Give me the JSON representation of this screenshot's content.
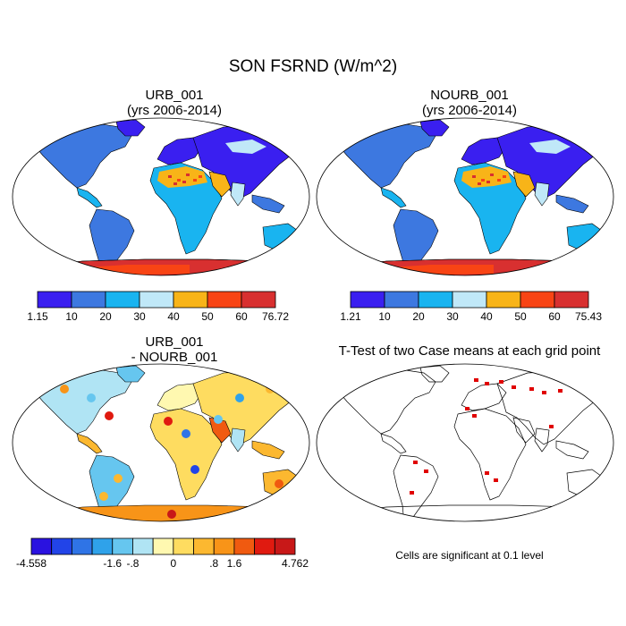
{
  "figure": {
    "title": "SON FSRND (W/m^2)",
    "significance_note": "Cells are significant at 0.1 level"
  },
  "panels": [
    {
      "id": "urb",
      "title_line1": "URB_001",
      "title_line2": "(yrs 2006-2014)",
      "colorbar": {
        "colors": [
          "#3a1ff0",
          "#3d78e0",
          "#19b4f0",
          "#c0e8f8",
          "#f8b418",
          "#f84414",
          "#d83030"
        ],
        "labels": [
          "1.15",
          "10",
          "20",
          "30",
          "40",
          "50",
          "60",
          "76.72"
        ]
      }
    },
    {
      "id": "nourb",
      "title_line1": "NOURB_001",
      "title_line2": "(yrs 2006-2014)",
      "colorbar": {
        "colors": [
          "#3a1ff0",
          "#3d78e0",
          "#19b4f0",
          "#c0e8f8",
          "#f8b418",
          "#f84414",
          "#d83030"
        ],
        "labels": [
          "1.21",
          "10",
          "20",
          "30",
          "40",
          "50",
          "60",
          "75.43"
        ]
      }
    },
    {
      "id": "diff",
      "title_line1": "URB_001",
      "title_line2": "- NOURB_001",
      "colorbar": {
        "colors": [
          "#2a12e0",
          "#2244e8",
          "#2f74e6",
          "#2fa2ea",
          "#66c6ef",
          "#b0e4f4",
          "#fff8b0",
          "#fedc60",
          "#fcb830",
          "#f89418",
          "#f05a10",
          "#e01a10",
          "#c81818"
        ],
        "labels": [
          "-4.558",
          "-1.6",
          "-.8",
          "0",
          ".8",
          "1.6",
          "4.762"
        ]
      }
    },
    {
      "id": "ttest",
      "title_line1": "T-Test of two Case means at each grid point",
      "title_line2": ""
    }
  ]
}
